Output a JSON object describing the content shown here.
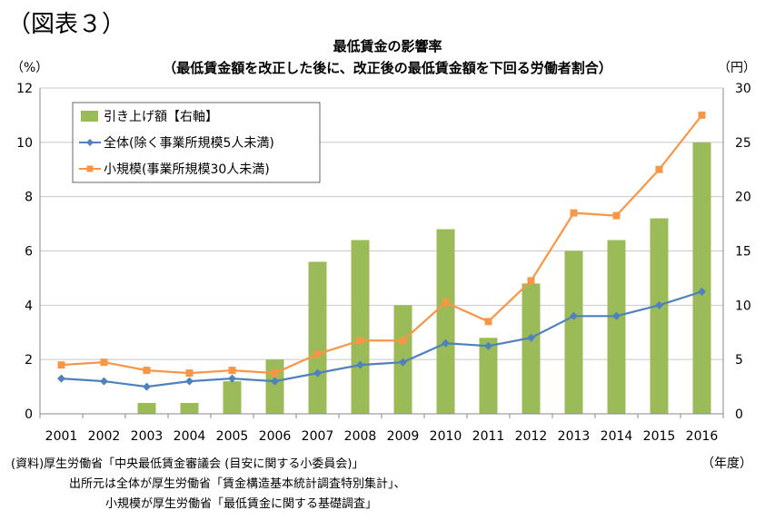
{
  "figure_label": "（図表３）",
  "source": {
    "line1": "(資料)厚生労働省「中央最低賃金審議会 (目安に関する小委員会)」",
    "line2": "出所元は全体が厚生労働省「賃金構造基本統計調査特別集計」、",
    "line3": "小規模が厚生労働省「最低賃金に関する基礎調査」"
  },
  "chart_data": {
    "type": "bar",
    "title": "最低賃金の影響率",
    "subtitle": "（最低賃金額を改正した後に、改正後の最低賃金額を下回る労働者割合）",
    "y_left_unit": "（%）",
    "y_right_unit": "（円）",
    "x_unit": "（年度）",
    "categories": [
      "2001",
      "2002",
      "2003",
      "2004",
      "2005",
      "2006",
      "2007",
      "2008",
      "2009",
      "2010",
      "2011",
      "2012",
      "2013",
      "2014",
      "2015",
      "2016"
    ],
    "y_left_ticks": [
      "0",
      "2",
      "4",
      "6",
      "8",
      "10",
      "12"
    ],
    "y_right_ticks": [
      "0",
      "5",
      "10",
      "15",
      "20",
      "25",
      "30"
    ],
    "ylim_left": [
      0,
      12
    ],
    "ylim_right": [
      0,
      30
    ],
    "grid": true,
    "legend_position": "top-left",
    "series": [
      {
        "name": "引き上げ額【右軸】",
        "type": "bar",
        "axis": "right",
        "color": "#9bbb59",
        "values": [
          0,
          0,
          1,
          1,
          3,
          5,
          14,
          16,
          10,
          17,
          7,
          12,
          15,
          16,
          18,
          25
        ]
      },
      {
        "name": "全体(除く事業所規模5人未満)",
        "type": "line",
        "axis": "left",
        "marker": "diamond",
        "color": "#4f81bd",
        "values": [
          1.3,
          1.2,
          1.0,
          1.2,
          1.3,
          1.2,
          1.5,
          1.8,
          1.9,
          2.6,
          2.5,
          2.8,
          3.6,
          3.6,
          4.0,
          4.5
        ]
      },
      {
        "name": "小規模(事業所規模30人未満)",
        "type": "line",
        "axis": "left",
        "marker": "square",
        "color": "#f79646",
        "values": [
          1.8,
          1.9,
          1.6,
          1.5,
          1.6,
          1.5,
          2.2,
          2.7,
          2.7,
          4.1,
          3.4,
          4.9,
          7.4,
          7.3,
          9.0,
          11.0
        ]
      }
    ]
  }
}
